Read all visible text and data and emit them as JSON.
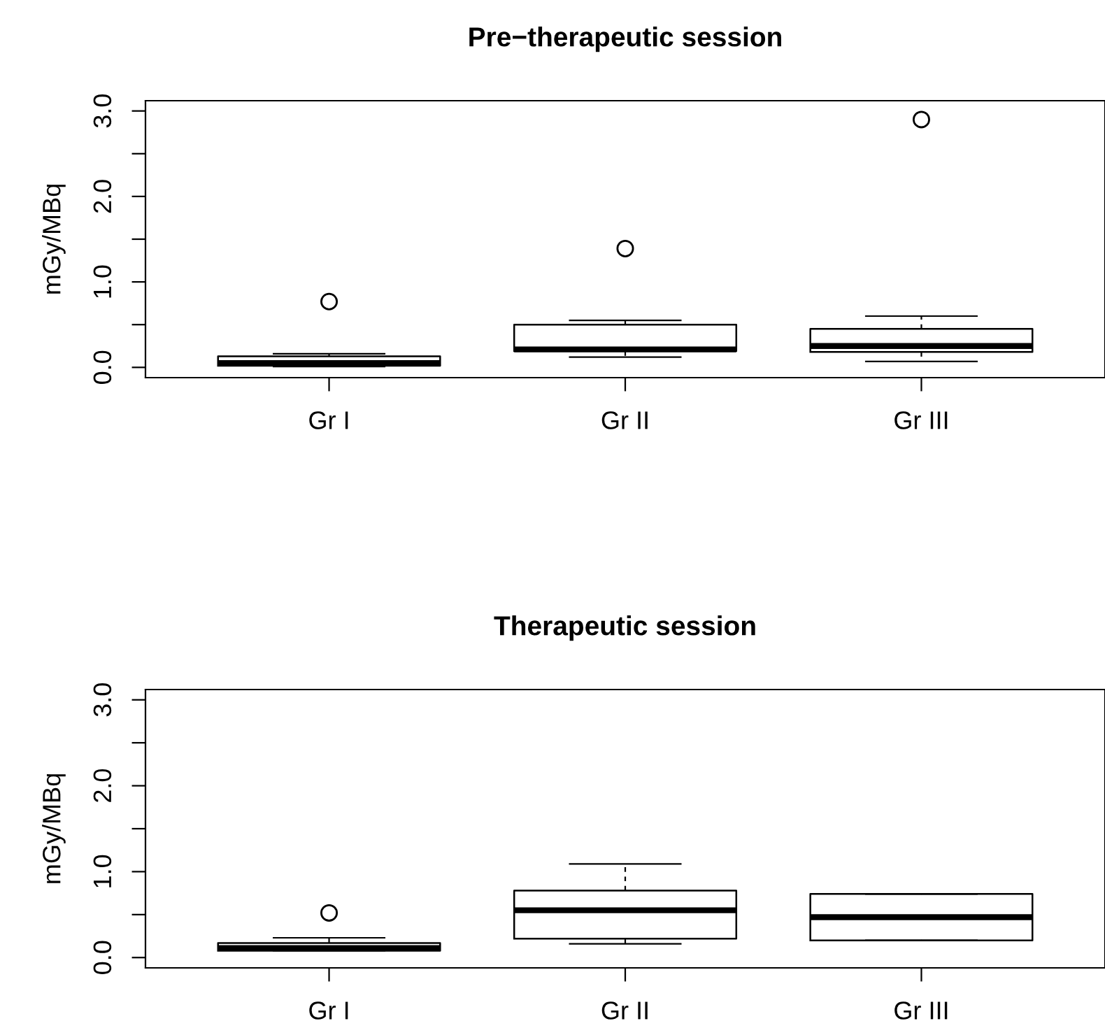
{
  "chart_data": [
    {
      "type": "box",
      "title": "Pre−therapeutic session",
      "ylabel": "mGy/MBq",
      "categories": [
        "Gr I",
        "Gr II",
        "Gr III"
      ],
      "boxes": [
        {
          "low": 0.01,
          "q1": 0.02,
          "median": 0.05,
          "q3": 0.13,
          "high": 0.16,
          "outliers": [
            0.77
          ]
        },
        {
          "low": 0.12,
          "q1": 0.19,
          "median": 0.21,
          "q3": 0.5,
          "high": 0.55,
          "outliers": [
            1.39
          ]
        },
        {
          "low": 0.07,
          "q1": 0.18,
          "median": 0.25,
          "q3": 0.45,
          "high": 0.6,
          "outliers": [
            2.9
          ]
        }
      ],
      "ylim": [
        -0.12,
        3.12
      ],
      "yticks": [
        {
          "value": 0,
          "label": "0.0"
        },
        {
          "value": 0.5,
          "label": null
        },
        {
          "value": 1,
          "label": "1.0"
        },
        {
          "value": 1.5,
          "label": null
        },
        {
          "value": 2,
          "label": "2.0"
        },
        {
          "value": 2.5,
          "label": null
        },
        {
          "value": 3,
          "label": "3.0"
        }
      ],
      "grid": false
    },
    {
      "type": "box",
      "title": "Therapeutic session",
      "ylabel": "mGy/MBq",
      "categories": [
        "Gr I",
        "Gr II",
        "Gr III"
      ],
      "boxes": [
        {
          "low": 0.08,
          "q1": 0.08,
          "median": 0.11,
          "q3": 0.17,
          "high": 0.23,
          "outliers": [
            0.52
          ]
        },
        {
          "low": 0.16,
          "q1": 0.22,
          "median": 0.55,
          "q3": 0.78,
          "high": 1.09
        },
        {
          "low": 0.2,
          "q1": 0.2,
          "median": 0.47,
          "q3": 0.74,
          "high": 0.74
        }
      ],
      "ylim": [
        -0.12,
        3.12
      ],
      "yticks": [
        {
          "value": 0,
          "label": "0.0"
        },
        {
          "value": 0.5,
          "label": null
        },
        {
          "value": 1,
          "label": "1.0"
        },
        {
          "value": 1.5,
          "label": null
        },
        {
          "value": 2,
          "label": "2.0"
        },
        {
          "value": 2.5,
          "label": null
        },
        {
          "value": 3,
          "label": "3.0"
        }
      ],
      "grid": false
    }
  ]
}
